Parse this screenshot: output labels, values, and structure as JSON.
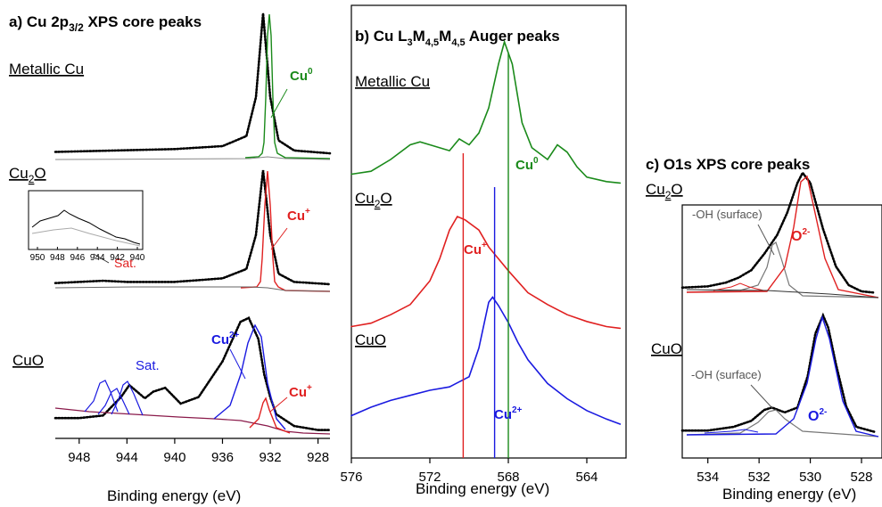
{
  "figure": {
    "panels": [
      {
        "id": "a",
        "title_lead": "a) Cu 2p",
        "title_sub": "3/2",
        "title_tail": " XPS core peaks",
        "xlabel": "Binding energy (eV)",
        "xticks": [
          "948",
          "944",
          "940",
          "936",
          "932",
          "928"
        ],
        "labels": {
          "metallic": "Metallic Cu",
          "cu2o_a": "Cu",
          "cu2o_b": "2",
          "cu2o_c": "O",
          "cuo": "CuO",
          "cu0": "Cu",
          "cu0_sup": "0",
          "cuplus": "Cu",
          "cuplus_sup": "+",
          "sat_red": "Sat.",
          "sat_blue": "Sat.",
          "cu2plus": "Cu",
          "cu2plus_sup": "2+",
          "cuplus2": "Cu",
          "cuplus2_sup": "+"
        },
        "inset": {
          "xticks": [
            "950",
            "948",
            "946",
            "944",
            "942",
            "940"
          ]
        }
      },
      {
        "id": "b",
        "title_lead": "b) Cu L",
        "title_s1": "3",
        "title_m1": "M",
        "title_s2": "4,5",
        "title_m2": "M",
        "title_s3": "4,5",
        "title_tail": " Auger peaks",
        "xlabel": "Binding energy (eV)",
        "xticks": [
          "576",
          "572",
          "568",
          "564"
        ],
        "labels": {
          "metallic": "Metallic Cu",
          "cu2o_a": "Cu",
          "cu2o_b": "2",
          "cu2o_c": "O",
          "cuo": "CuO",
          "cu0": "Cu",
          "cu0_sup": "0",
          "cuplus": "Cu",
          "cuplus_sup": "+",
          "cu2plus": "Cu",
          "cu2plus_sup": "2+"
        }
      },
      {
        "id": "c",
        "title": "c) O1s XPS core peaks",
        "xlabel": "Binding energy (eV)",
        "xticks": [
          "534",
          "532",
          "530",
          "528"
        ],
        "labels": {
          "cu2o_a": "Cu",
          "cu2o_b": "2",
          "cu2o_c": "O",
          "cuo": "CuO",
          "oh1": "-OH (surface)",
          "oh2": "-OH (surface)",
          "o2a": "O",
          "o2a_sup": "2-",
          "o2b": "O",
          "o2b_sup": "2-"
        }
      }
    ],
    "colors": {
      "metallic": "#1a8a1a",
      "cuplus": "#e02020",
      "cu2plus": "#1a1ae0",
      "data": "#000000",
      "fit_envelope": "#333333",
      "background": "#777777"
    }
  },
  "chart_data": [
    {
      "type": "line",
      "panel": "a",
      "x_reversed": true,
      "xlim": [
        950,
        927
      ],
      "series": [
        {
          "name": "Metallic Cu",
          "x": [
            950,
            940,
            936,
            934,
            933.2,
            932.6,
            932.0,
            931.3,
            930,
            927
          ],
          "y": [
            0.04,
            0.06,
            0.08,
            0.15,
            0.42,
            1.0,
            0.42,
            0.12,
            0.05,
            0.03
          ]
        },
        {
          "name": "Cu2O",
          "x": [
            950,
            946,
            944,
            940,
            936,
            934,
            933.2,
            932.6,
            932.0,
            931.3,
            930,
            927
          ],
          "y": [
            0.04,
            0.06,
            0.05,
            0.05,
            0.08,
            0.16,
            0.45,
            1.0,
            0.45,
            0.12,
            0.05,
            0.03
          ]
        },
        {
          "name": "CuO",
          "x": [
            950,
            948,
            946,
            944.5,
            943.8,
            942.5,
            941.8,
            940.8,
            939.5,
            938,
            936,
            934.5,
            933.8,
            933.0,
            932.5,
            932.0,
            931.5,
            930,
            928,
            927
          ],
          "y": [
            0.12,
            0.12,
            0.14,
            0.28,
            0.37,
            0.27,
            0.32,
            0.35,
            0.23,
            0.28,
            0.55,
            0.85,
            0.88,
            0.72,
            0.45,
            0.28,
            0.15,
            0.06,
            0.03,
            0.03
          ]
        }
      ]
    },
    {
      "type": "line",
      "panel": "b",
      "x_reversed": true,
      "xlim": [
        576,
        562
      ],
      "series": [
        {
          "name": "Metallic Cu",
          "x": [
            576,
            575,
            574,
            573,
            572.5,
            572,
            571,
            570.5,
            570,
            569.5,
            569,
            568.5,
            568.2,
            567.8,
            567.3,
            566.8,
            566,
            565.5,
            565,
            564.5,
            564,
            563,
            562.3
          ],
          "y": [
            0.1,
            0.12,
            0.2,
            0.3,
            0.32,
            0.3,
            0.26,
            0.34,
            0.3,
            0.38,
            0.55,
            0.85,
            1.0,
            0.85,
            0.45,
            0.28,
            0.2,
            0.3,
            0.25,
            0.15,
            0.08,
            0.05,
            0.04
          ]
        },
        {
          "name": "Cu2O",
          "x": [
            576,
            575,
            574,
            573,
            572,
            571.5,
            571,
            570.6,
            570.2,
            569.5,
            569,
            568.5,
            568,
            567,
            566,
            565,
            564,
            563,
            562.3
          ],
          "y": [
            0.15,
            0.17,
            0.22,
            0.28,
            0.42,
            0.55,
            0.72,
            0.8,
            0.78,
            0.72,
            0.62,
            0.55,
            0.48,
            0.35,
            0.28,
            0.22,
            0.18,
            0.15,
            0.14
          ]
        },
        {
          "name": "CuO",
          "x": [
            576,
            575,
            574,
            573,
            572,
            571,
            570,
            569.5,
            569,
            568.8,
            568.5,
            568,
            567.5,
            567,
            566,
            565,
            564,
            563,
            562.3
          ],
          "y": [
            0.15,
            0.2,
            0.24,
            0.27,
            0.3,
            0.32,
            0.38,
            0.55,
            0.82,
            0.85,
            0.8,
            0.7,
            0.58,
            0.48,
            0.34,
            0.25,
            0.18,
            0.13,
            0.1
          ]
        }
      ],
      "markers": [
        {
          "name": "Cu0",
          "x": 568.0
        },
        {
          "name": "Cu+",
          "x": 570.3
        },
        {
          "name": "Cu2+",
          "x": 568.7
        }
      ]
    },
    {
      "type": "line",
      "panel": "c",
      "x_reversed": true,
      "xlim": [
        535,
        527.2
      ],
      "series": [
        {
          "name": "Cu2O",
          "x": [
            535,
            534,
            533.3,
            532.8,
            532.3,
            531.8,
            531.3,
            530.9,
            530.5,
            530.3,
            530.0,
            529.5,
            529,
            528.5,
            528,
            527.5
          ],
          "y": [
            0.08,
            0.09,
            0.12,
            0.16,
            0.22,
            0.35,
            0.5,
            0.68,
            0.92,
            1.0,
            0.92,
            0.55,
            0.25,
            0.1,
            0.05,
            0.04
          ]
        },
        {
          "name": "CuO",
          "x": [
            535,
            534,
            533,
            532.3,
            531.8,
            531.5,
            531.0,
            530.5,
            530.1,
            529.8,
            529.5,
            529.3,
            529.0,
            528.6,
            528.2,
            527.5
          ],
          "y": [
            0.05,
            0.05,
            0.08,
            0.13,
            0.22,
            0.24,
            0.2,
            0.24,
            0.5,
            0.85,
            1.0,
            0.9,
            0.6,
            0.25,
            0.08,
            0.04
          ]
        }
      ]
    }
  ]
}
